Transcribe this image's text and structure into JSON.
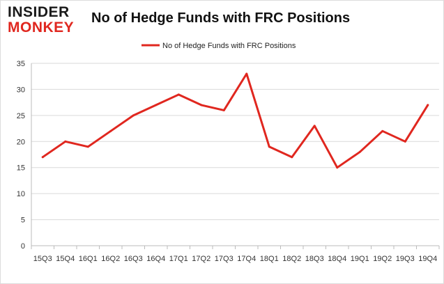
{
  "logo": {
    "line1": "INSIDER",
    "line2": "MONKEY"
  },
  "colors": {
    "line": "#e0271f",
    "grid": "#d9d9d9",
    "axis": "#bbbbbb"
  },
  "chart_data": {
    "type": "line",
    "title": "No of Hedge Funds with FRC Positions",
    "legend": {
      "placement": "top-center"
    },
    "grid": true,
    "ylim": [
      0,
      35
    ],
    "yticks": [
      0,
      5,
      10,
      15,
      20,
      25,
      30,
      35
    ],
    "categories": [
      "15Q3",
      "15Q4",
      "16Q1",
      "16Q2",
      "16Q3",
      "16Q4",
      "17Q1",
      "17Q2",
      "17Q3",
      "17Q4",
      "18Q1",
      "18Q2",
      "18Q3",
      "18Q4",
      "19Q1",
      "19Q2",
      "19Q3",
      "19Q4"
    ],
    "series": [
      {
        "name": "No of Hedge Funds with FRC Positions",
        "values": [
          17,
          20,
          19,
          22,
          25,
          27,
          29,
          27,
          26,
          33,
          19,
          17,
          23,
          15,
          18,
          22,
          20,
          27
        ]
      }
    ]
  }
}
